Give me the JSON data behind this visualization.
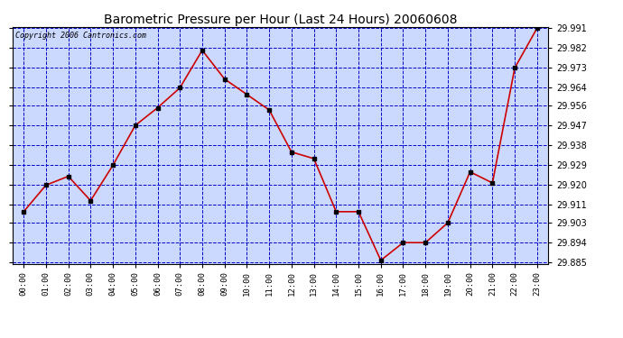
{
  "title": "Barometric Pressure per Hour (Last 24 Hours) 20060608",
  "copyright": "Copyright 2006 Cantronics.com",
  "hours": [
    "00:00",
    "01:00",
    "02:00",
    "03:00",
    "04:00",
    "05:00",
    "06:00",
    "07:00",
    "08:00",
    "09:00",
    "10:00",
    "11:00",
    "12:00",
    "13:00",
    "14:00",
    "15:00",
    "16:00",
    "17:00",
    "18:00",
    "19:00",
    "20:00",
    "21:00",
    "22:00",
    "23:00"
  ],
  "values": [
    29.908,
    29.92,
    29.924,
    29.913,
    29.929,
    29.947,
    29.955,
    29.964,
    29.981,
    29.968,
    29.961,
    29.954,
    29.935,
    29.932,
    29.908,
    29.908,
    29.886,
    29.894,
    29.894,
    29.903,
    29.926,
    29.921,
    29.973,
    29.991
  ],
  "ylim_min": 29.885,
  "ylim_max": 29.991,
  "yticks": [
    29.885,
    29.894,
    29.903,
    29.911,
    29.92,
    29.929,
    29.938,
    29.947,
    29.956,
    29.964,
    29.973,
    29.982,
    29.991
  ],
  "line_color": "#cc0000",
  "marker_color": "#000000",
  "bg_color": "#ffffff",
  "plot_bg_color": "#ccd9ff",
  "grid_color": "#0000cc",
  "title_color": "#000000",
  "border_color": "#000000"
}
